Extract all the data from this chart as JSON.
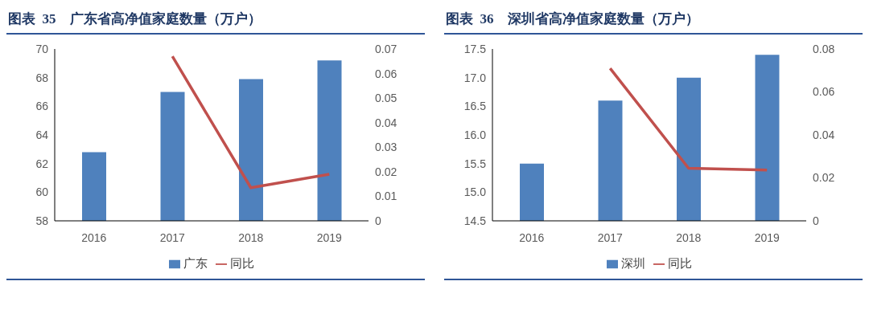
{
  "chart_data": [
    {
      "type": "bar",
      "title": "图表  35    广东省高净值家庭数量（万户）",
      "categories": [
        "2016",
        "2017",
        "2018",
        "2019"
      ],
      "series": [
        {
          "name": "广东",
          "color": "#4f81bd",
          "values": [
            62.8,
            67.0,
            67.9,
            69.2
          ]
        },
        {
          "name": "同比",
          "type": "line",
          "axis": "y2",
          "color": "#c0504d",
          "values": [
            null,
            0.067,
            0.0135,
            0.019
          ]
        }
      ],
      "ylim": [
        58,
        70
      ],
      "yticks": [
        58,
        60,
        62,
        64,
        66,
        68,
        70
      ],
      "y2lim": [
        0,
        0.07
      ],
      "y2ticks": [
        0,
        0.01,
        0.02,
        0.03,
        0.04,
        0.05,
        0.06,
        0.07
      ],
      "legend": "bottom",
      "grid": false
    },
    {
      "type": "bar",
      "title": "图表  36    深圳省高净值家庭数量（万户）",
      "categories": [
        "2016",
        "2017",
        "2018",
        "2019"
      ],
      "series": [
        {
          "name": "深圳",
          "color": "#4f81bd",
          "values": [
            15.5,
            16.6,
            17.0,
            17.4
          ]
        },
        {
          "name": "同比",
          "type": "line",
          "axis": "y2",
          "color": "#c0504d",
          "values": [
            null,
            0.071,
            0.0245,
            0.0236
          ]
        }
      ],
      "ylim": [
        14.5,
        17.5
      ],
      "yticks": [
        14.5,
        {
          "value": 15,
          "label": "15.0"
        },
        15.5,
        {
          "value": 16,
          "label": "16.0"
        },
        16.5,
        {
          "value": 17,
          "label": "17.0"
        },
        17.5
      ],
      "y2lim": [
        0,
        0.08
      ],
      "y2ticks": [
        0,
        0.02,
        0.04,
        0.06,
        0.08
      ],
      "legend": "bottom",
      "grid": false
    }
  ]
}
